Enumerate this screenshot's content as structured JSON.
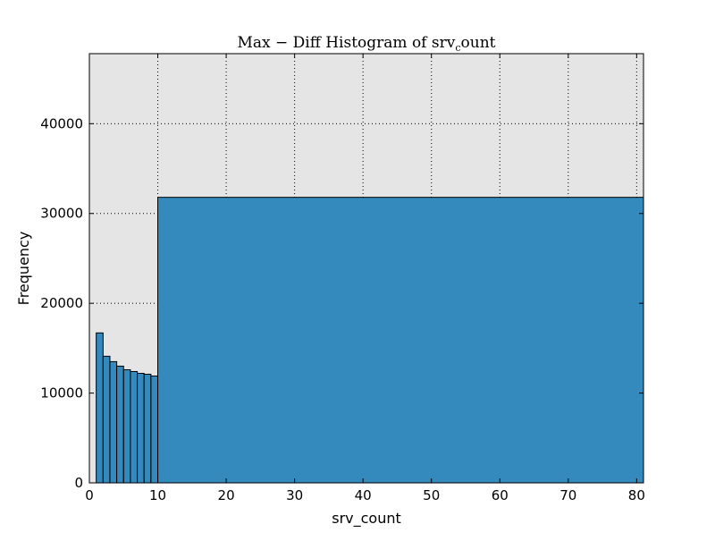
{
  "chart_data": {
    "type": "bar",
    "title": {
      "main": "Max − Diff Histogram of srv",
      "subscript": "c",
      "tail": "ount"
    },
    "xlabel": "srv_count",
    "ylabel": "Frequency",
    "xlim": [
      0,
      81
    ],
    "ylim": [
      0,
      47800
    ],
    "xticks": [
      0,
      10,
      20,
      30,
      40,
      50,
      60,
      70,
      80
    ],
    "yticks": [
      0,
      10000,
      20000,
      30000,
      40000
    ],
    "xtick_labels": [
      "0",
      "10",
      "20",
      "30",
      "40",
      "50",
      "60",
      "70",
      "80"
    ],
    "ytick_labels": [
      "0",
      "10000",
      "20000",
      "30000",
      "40000"
    ],
    "grid": true,
    "colors": {
      "bar": "#348abd",
      "background": "#e5e5e5",
      "edge": "#000000"
    },
    "bins": [
      {
        "start": 1,
        "end": 2,
        "value": 16700
      },
      {
        "start": 2,
        "end": 3,
        "value": 14100
      },
      {
        "start": 3,
        "end": 4,
        "value": 13500
      },
      {
        "start": 4,
        "end": 5,
        "value": 13000
      },
      {
        "start": 5,
        "end": 6,
        "value": 12600
      },
      {
        "start": 6,
        "end": 7,
        "value": 12400
      },
      {
        "start": 7,
        "end": 8,
        "value": 12200
      },
      {
        "start": 8,
        "end": 9,
        "value": 12100
      },
      {
        "start": 9,
        "end": 10,
        "value": 11900
      },
      {
        "start": 10,
        "end": 81,
        "value": 31800
      }
    ]
  }
}
